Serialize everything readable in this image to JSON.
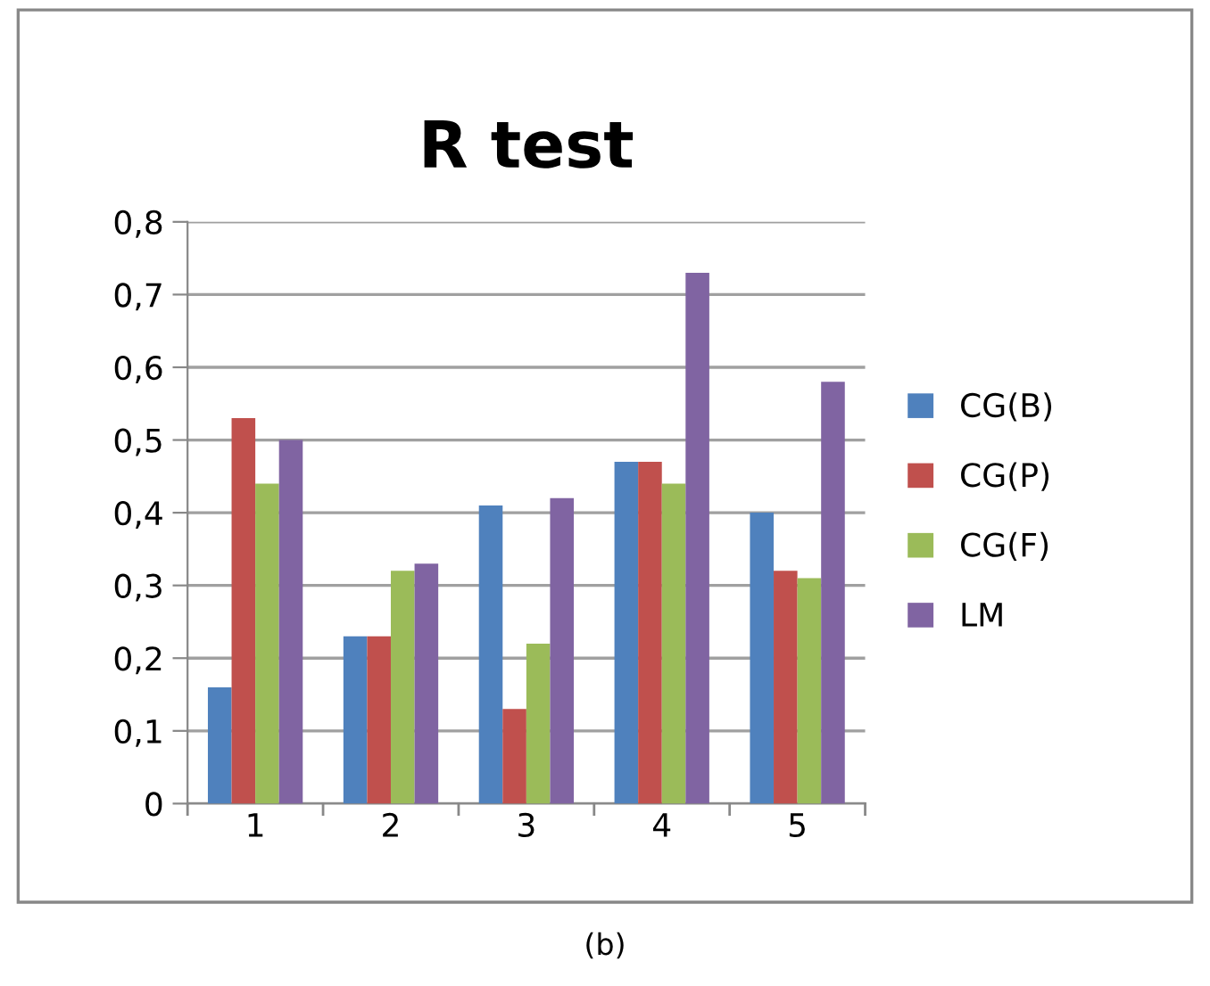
{
  "chart_data": {
    "type": "bar",
    "title": "R test",
    "categories": [
      "1",
      "2",
      "3",
      "4",
      "5"
    ],
    "series": [
      {
        "name": "CG(B)",
        "color": "#4f81bd",
        "values": [
          0.16,
          0.23,
          0.41,
          0.47,
          0.4
        ]
      },
      {
        "name": "CG(P)",
        "color": "#c0504d",
        "values": [
          0.53,
          0.23,
          0.13,
          0.47,
          0.32
        ]
      },
      {
        "name": "CG(F)",
        "color": "#9bbb59",
        "values": [
          0.44,
          0.32,
          0.22,
          0.44,
          0.31
        ]
      },
      {
        "name": "LM",
        "color": "#8064a2",
        "values": [
          0.5,
          0.33,
          0.42,
          0.73,
          0.58
        ]
      }
    ],
    "ylim": [
      0,
      0.8
    ],
    "yticks": [
      0,
      {
        "value": 0.1,
        "label": "0,1"
      },
      {
        "value": 0.2,
        "label": "0,2"
      },
      {
        "value": 0.3,
        "label": "0,3"
      },
      {
        "value": 0.4,
        "label": "0,4"
      },
      {
        "value": 0.5,
        "label": "0,5"
      },
      {
        "value": 0.6,
        "label": "0,6"
      },
      {
        "value": 0.7,
        "label": "0,7"
      },
      {
        "value": 0.8,
        "label": "0,8"
      }
    ],
    "grid": "y",
    "legend": "right",
    "annotations": [
      "(b)"
    ]
  }
}
